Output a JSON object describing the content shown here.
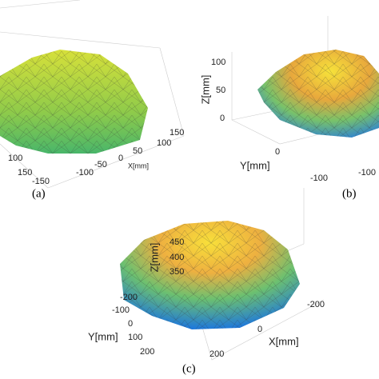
{
  "panels": [
    {
      "caption": "(a)",
      "ticks": [
        "100",
        "150",
        "-150",
        "-100",
        "-50",
        "0",
        "50",
        "100",
        "150"
      ],
      "axis_labels": [
        "X[mm]"
      ]
    },
    {
      "caption": "(b)",
      "ticks": [
        "100",
        "50",
        "0",
        "0",
        "-100",
        "-100"
      ],
      "axis_labels": [
        "Z[mm]",
        "Y[mm]"
      ]
    },
    {
      "caption": "(c)",
      "ticks": [
        "450",
        "400",
        "350",
        "-200",
        "-100",
        "0",
        "100",
        "200",
        "-200",
        "0",
        "200"
      ],
      "axis_labels": [
        "Z[mm]",
        "Y[mm]",
        "X[mm]"
      ]
    }
  ]
}
